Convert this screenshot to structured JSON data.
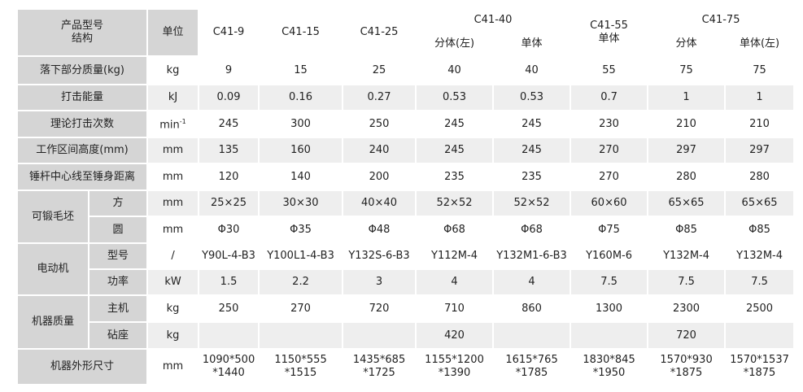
{
  "header": {
    "model_label": "产品型号",
    "structure_label": "结构",
    "unit_label": "单位",
    "models": [
      {
        "name": "C41-9"
      },
      {
        "name": "C41-15"
      },
      {
        "name": "C41-25"
      },
      {
        "name": "C41-40",
        "variants": [
          "分体(左)",
          "单体"
        ]
      },
      {
        "name": "C41-55",
        "variants": [
          "单体"
        ]
      },
      {
        "name": "C41-75",
        "variants": [
          "分体",
          "单体(左)"
        ]
      }
    ]
  },
  "rows": [
    {
      "label": "落下部分质量(kg)",
      "unit": "kg",
      "values": [
        9,
        15,
        25,
        40,
        40,
        55,
        75,
        75
      ]
    },
    {
      "label": "打击能量",
      "unit": "kJ",
      "values": [
        0.09,
        0.16,
        0.27,
        0.53,
        0.53,
        0.7,
        1,
        1
      ]
    },
    {
      "label": "理论打击次数",
      "unit": "min",
      "unit_sup": "-1",
      "values": [
        245,
        300,
        250,
        245,
        245,
        230,
        210,
        210
      ]
    },
    {
      "label": "工作区间高度(mm)",
      "unit": "mm",
      "values": [
        135,
        160,
        240,
        245,
        245,
        270,
        297,
        297
      ]
    },
    {
      "label": "锤杆中心线至锤身距离",
      "unit": "mm",
      "values": [
        120,
        140,
        200,
        235,
        235,
        270,
        280,
        280
      ]
    },
    {
      "group": "可锻毛坯",
      "rows": [
        {
          "label": "方",
          "unit": "mm",
          "values": [
            "25×25",
            "30×30",
            "40×40",
            "52×52",
            "52×52",
            "60×60",
            "65×65",
            "65×65"
          ]
        },
        {
          "label": "圆",
          "unit": "mm",
          "values": [
            "Φ30",
            "Φ35",
            "Φ48",
            "Φ68",
            "Φ68",
            "Φ75",
            "Φ85",
            "Φ85"
          ]
        }
      ]
    },
    {
      "group": "电动机",
      "rows": [
        {
          "label": "型号",
          "unit": "/",
          "values": [
            "Y90L-4-B3",
            "Y100L1-4-B3",
            "Y132S-6-B3",
            "Y112M-4",
            "Y132M1-6-B3",
            "Y160M-6",
            "Y132M-4",
            "Y132M-4"
          ]
        },
        {
          "label": "功率",
          "unit": "kW",
          "values": [
            1.5,
            2.2,
            3,
            4,
            4,
            7.5,
            7.5,
            7.5
          ]
        }
      ]
    },
    {
      "group": "机器质量",
      "rows": [
        {
          "label": "主机",
          "unit": "kg",
          "values": [
            250,
            270,
            720,
            710,
            860,
            1300,
            2300,
            2500
          ]
        },
        {
          "label": "砧座",
          "unit": "kg",
          "values": [
            null,
            null,
            null,
            420,
            null,
            null,
            720,
            null
          ]
        }
      ]
    },
    {
      "label": "机器外形尺寸",
      "unit": "mm",
      "values": [
        [
          "1090*500",
          "*1440"
        ],
        [
          "1150*555",
          "*1515"
        ],
        [
          "1435*685",
          "*1725"
        ],
        [
          "1155*1200",
          "*1390"
        ],
        [
          "1615*765",
          "*1785"
        ],
        [
          "1830*845",
          "*1950"
        ],
        [
          "1570*930",
          "*1875"
        ],
        [
          "1570*1537",
          "*1875"
        ]
      ]
    }
  ]
}
